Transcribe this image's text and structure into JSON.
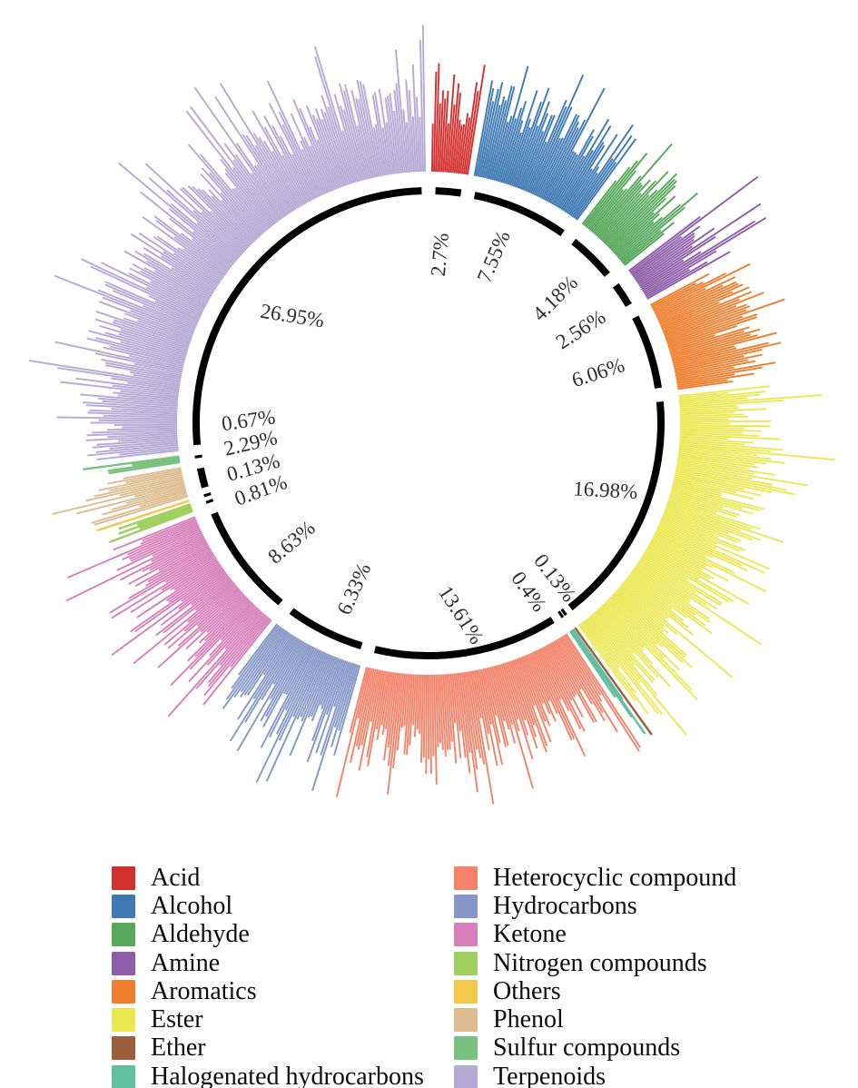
{
  "chart_data": {
    "type": "bar",
    "layout": "radial",
    "title": "",
    "start_angle_deg": 0,
    "direction": "clockwise",
    "categories": [
      "Acid",
      "Alcohol",
      "Aldehyde",
      "Amine",
      "Aromatics",
      "Ester",
      "Ether",
      "Halogenated hydrocarbons",
      "Heterocyclic compound",
      "Hydrocarbons",
      "Ketone",
      "Nitrogen compounds",
      "Others",
      "Phenol",
      "Sulfur compounds",
      "Terpenoids"
    ],
    "values": [
      2.7,
      7.55,
      4.18,
      2.56,
      6.06,
      16.98,
      0.13,
      0.4,
      13.61,
      6.33,
      8.63,
      0.81,
      0.13,
      2.29,
      0.67,
      26.95
    ],
    "percent_labels": [
      "2.7%",
      "7.55%",
      "4.18%",
      "2.56%",
      "6.06%",
      "16.98%",
      "0.13%",
      "0.4%",
      "13.61%",
      "6.33%",
      "8.63%",
      "0.81%",
      "0.13%",
      "2.29%",
      "0.67%",
      "26.95%"
    ],
    "colors": [
      "#D3302F",
      "#3E79B4",
      "#55A75A",
      "#8E5DA8",
      "#EF7E2E",
      "#ECE854",
      "#9C5E3A",
      "#62BFA0",
      "#F3836A",
      "#8497C6",
      "#D77FBB",
      "#9FD05F",
      "#F4C84B",
      "#DBBD90",
      "#79C17F",
      "#B5AAD4"
    ],
    "ring_color": "#000000",
    "label_color": "#2e2e2e",
    "grid": false,
    "legend_position": "bottom",
    "legend_columns": [
      [
        "Acid",
        "Alcohol",
        "Aldehyde",
        "Amine",
        "Aromatics",
        "Ester",
        "Ether",
        "Halogenated hydrocarbons"
      ],
      [
        "Heterocyclic compound",
        "Hydrocarbons",
        "Ketone",
        "Nitrogen compounds",
        "Others",
        "Phenol",
        "Sulfur compounds",
        "Terpenoids"
      ]
    ],
    "note": "Each sector is filled with many thin radial bars (one per individual compound, magnitudes not labeled); the sector angular width encodes the labeled percentage share. Inner black dashed ring marks each sector span."
  }
}
